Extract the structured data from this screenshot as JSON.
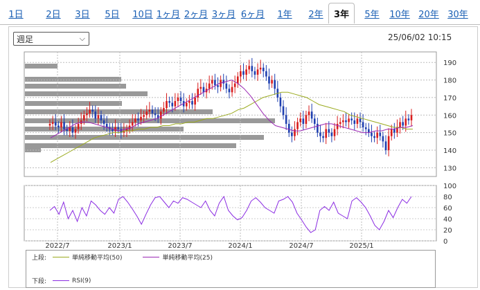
{
  "tabs": [
    {
      "label": "1日",
      "active": false
    },
    {
      "label": "2日",
      "active": false
    },
    {
      "label": "3日",
      "active": false
    },
    {
      "label": "5日",
      "active": false
    },
    {
      "label": "10日",
      "active": false
    },
    {
      "label": "1ヶ月",
      "active": false
    },
    {
      "label": "2ヶ月",
      "active": false
    },
    {
      "label": "3ヶ月",
      "active": false
    },
    {
      "label": "6ヶ月",
      "active": false
    },
    {
      "label": "1年",
      "active": false
    },
    {
      "label": "2年",
      "active": false
    },
    {
      "label": "3年",
      "active": true
    },
    {
      "label": "5年",
      "active": false
    },
    {
      "label": "10年",
      "active": false
    },
    {
      "label": "20年",
      "active": false
    },
    {
      "label": "30年",
      "active": false
    }
  ],
  "period_select": {
    "value": "週足"
  },
  "timestamp": "25/06/02 10:15",
  "legend": {
    "upper_label": "上段:",
    "lower_label": "下段:",
    "items_upper": [
      {
        "name": "単純移動平均(50)",
        "color": "#9aaa1e"
      },
      {
        "name": "単純移動平均(25)",
        "color": "#9b28b4"
      }
    ],
    "items_lower": [
      {
        "name": "RSI(9)",
        "color": "#8a2be2"
      }
    ]
  },
  "chart_data": {
    "type": "candlestick",
    "x_ticks": [
      "2022/7",
      "2023/1",
      "2023/7",
      "2024/1",
      "2024/7",
      "2025/1"
    ],
    "price_axis": {
      "ticks": [
        130,
        140,
        150,
        160,
        170,
        180,
        190
      ],
      "range": [
        125,
        196
      ]
    },
    "rsi_axis": {
      "ticks": [
        0,
        20,
        40,
        60,
        80,
        100
      ],
      "range": [
        0,
        100
      ]
    },
    "colors": {
      "up": "#d81b1b",
      "down": "#1e3fb0",
      "ma50": "#9aaa1e",
      "ma25": "#9b28b4",
      "rsi": "#8a2be2",
      "volume_profile": "#999999"
    },
    "weekly_close_approx": [
      155,
      156,
      154,
      153,
      156,
      152,
      151,
      153,
      150,
      152,
      155,
      157,
      160,
      161,
      163,
      162,
      158,
      160,
      157,
      155,
      153,
      152,
      151,
      153,
      152,
      150,
      151,
      152,
      154,
      156,
      158,
      157,
      159,
      160,
      162,
      163,
      161,
      160,
      158,
      162,
      164,
      168,
      167,
      165,
      168,
      170,
      168,
      165,
      167,
      168,
      166,
      170,
      175,
      176,
      173,
      175,
      178,
      180,
      177,
      176,
      180,
      178,
      175,
      173,
      176,
      178,
      182,
      185,
      183,
      186,
      188,
      185,
      183,
      186,
      187,
      185,
      182,
      178,
      180,
      175,
      170,
      165,
      160,
      155,
      150,
      148,
      152,
      156,
      158,
      155,
      160,
      162,
      158,
      155,
      150,
      148,
      147,
      152,
      150,
      148,
      152,
      155,
      156,
      157,
      156,
      158,
      157,
      155,
      158,
      156,
      153,
      152,
      150,
      148,
      147,
      150,
      148,
      145,
      140,
      148,
      152,
      150,
      153,
      156,
      154,
      158,
      157,
      160
    ],
    "ma50_approx": [
      133,
      135,
      137,
      139,
      141,
      143,
      145,
      147,
      148,
      149,
      150,
      150,
      151,
      151,
      152,
      152,
      153,
      153,
      154,
      154,
      155,
      155,
      156,
      156,
      157,
      158,
      158,
      159,
      160,
      161,
      163,
      164,
      166,
      168,
      170,
      171,
      172,
      173,
      173,
      172,
      171,
      170,
      168,
      166,
      165,
      164,
      163,
      162,
      160,
      159,
      158,
      157,
      156,
      155,
      154,
      153,
      153,
      152,
      152
    ],
    "ma25_approx": [
      147,
      149,
      151,
      153,
      155,
      156,
      156,
      155,
      154,
      153,
      152,
      151,
      152,
      153,
      155,
      156,
      157,
      158,
      160,
      162,
      164,
      166,
      168,
      170,
      172,
      174,
      176,
      178,
      179,
      180,
      178,
      175,
      171,
      166,
      161,
      157,
      154,
      153,
      152,
      151,
      151,
      152,
      153,
      154,
      155,
      155,
      154,
      153,
      152,
      151,
      150,
      150,
      151,
      151,
      152,
      152,
      153,
      153,
      154
    ],
    "rsi_approx": [
      55,
      62,
      48,
      70,
      40,
      55,
      35,
      60,
      45,
      72,
      65,
      55,
      48,
      60,
      50,
      75,
      80,
      70,
      58,
      45,
      30,
      48,
      65,
      78,
      80,
      70,
      60,
      72,
      68,
      78,
      75,
      70,
      65,
      60,
      72,
      55,
      45,
      68,
      80,
      55,
      45,
      38,
      42,
      55,
      72,
      78,
      70,
      60,
      55,
      50,
      72,
      75,
      80,
      70,
      50,
      38,
      25,
      15,
      20,
      55,
      62,
      55,
      70,
      50,
      45,
      40,
      72,
      78,
      70,
      60,
      45,
      28,
      20,
      35,
      55,
      42,
      60,
      75,
      68,
      80
    ]
  }
}
